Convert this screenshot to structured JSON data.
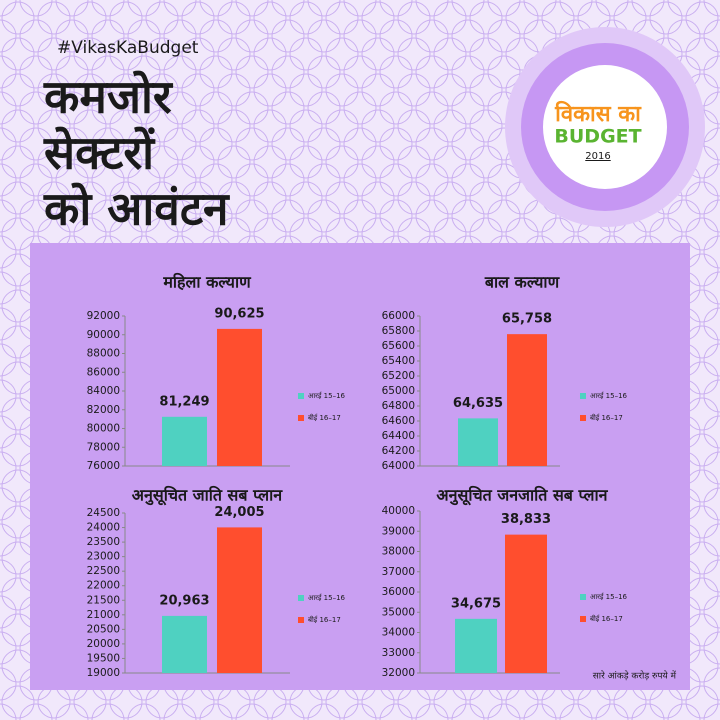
{
  "header": {
    "hashtag": "#VikasKaBudget",
    "title_lines": [
      "कमजोर",
      "सेक्टरों",
      "को आवंटन"
    ]
  },
  "logo": {
    "line1": "विकास का",
    "line2": "BUDGET",
    "year": "2016"
  },
  "footnote": "सारे आंकड़े करोड़ रुपये में",
  "chart_data": [
    {
      "type": "bar",
      "title": "महिला कल्याण",
      "ylim": [
        76000,
        92000
      ],
      "yticks": [
        76000,
        78000,
        80000,
        82000,
        84000,
        86000,
        88000,
        90000,
        92000
      ],
      "series": [
        {
          "name": "आरई 15–16",
          "color": "#4fd1c1",
          "values": [
            81249
          ],
          "value_labels": [
            "81,249"
          ]
        },
        {
          "name": "बीई 16–17",
          "color": "#ff4e2e",
          "values": [
            90625
          ],
          "value_labels": [
            "90,625"
          ]
        }
      ]
    },
    {
      "type": "bar",
      "title": "बाल कल्याण",
      "ylim": [
        64000,
        66000
      ],
      "yticks": [
        64000,
        64200,
        64400,
        64600,
        64800,
        65000,
        65200,
        65400,
        65600,
        65800,
        66000
      ],
      "series": [
        {
          "name": "आरई 15–16",
          "color": "#4fd1c1",
          "values": [
            64635
          ],
          "value_labels": [
            "64,635"
          ]
        },
        {
          "name": "बीई 16–17",
          "color": "#ff4e2e",
          "values": [
            65758
          ],
          "value_labels": [
            "65,758"
          ]
        }
      ]
    },
    {
      "type": "bar",
      "title": "अनुसूचित जाति सब प्लान",
      "ylim": [
        19000,
        24500
      ],
      "yticks": [
        19000,
        19500,
        20000,
        20500,
        21000,
        21500,
        22000,
        22500,
        23000,
        23500,
        24000,
        24500
      ],
      "series": [
        {
          "name": "आरई 15–16",
          "color": "#4fd1c1",
          "values": [
            20963
          ],
          "value_labels": [
            "20,963"
          ]
        },
        {
          "name": "बीई 16–17",
          "color": "#ff4e2e",
          "values": [
            24005
          ],
          "value_labels": [
            "24,005"
          ]
        }
      ]
    },
    {
      "type": "bar",
      "title": "अनुसूचित जनजाति सब प्लान",
      "ylim": [
        32000,
        40000
      ],
      "yticks": [
        32000,
        33000,
        34000,
        35000,
        36000,
        37000,
        38000,
        39000,
        40000
      ],
      "series": [
        {
          "name": "आरई 15–16",
          "color": "#4fd1c1",
          "values": [
            34675
          ],
          "value_labels": [
            "34,675"
          ]
        },
        {
          "name": "बीई 16–17",
          "color": "#ff4e2e",
          "values": [
            38833
          ],
          "value_labels": [
            "38,833"
          ]
        }
      ]
    }
  ]
}
